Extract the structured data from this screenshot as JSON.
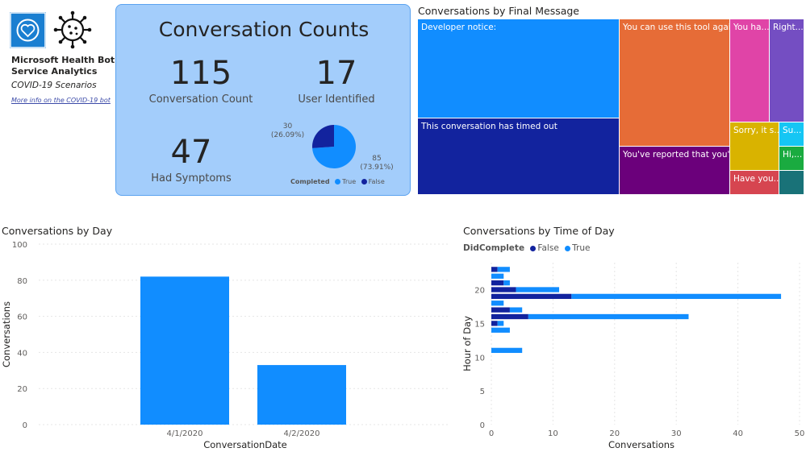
{
  "branding": {
    "title": "Microsoft Health Bot Service Analytics",
    "subtitle": "COVID-19 Scenarios",
    "link": "More info on the COVID-19 bot"
  },
  "kpis": {
    "title": "Conversation Counts",
    "conversation_count": {
      "value": "115",
      "label": "Conversation Count"
    },
    "user_identified": {
      "value": "17",
      "label": "User Identified"
    },
    "had_symptoms": {
      "value": "47",
      "label": "Had Symptoms"
    },
    "completed_pie": {
      "slices": [
        {
          "label": "True",
          "value": 85,
          "pct": "(73.91%)",
          "color": "#118DFF"
        },
        {
          "label": "False",
          "value": 30,
          "pct": "(26.09%)",
          "color": "#12239E"
        }
      ],
      "legend_title": "Completed",
      "legend_true": "True",
      "legend_false": "False",
      "true_label": "85",
      "false_label": "30"
    }
  },
  "treemap": {
    "title": "Conversations by Final Message",
    "cells": [
      {
        "label": "Developer notice:",
        "color": "#118DFF"
      },
      {
        "label": "This conversation has timed out",
        "color": "#12239E"
      },
      {
        "label": "You can use this tool agai...",
        "color": "#E66C37"
      },
      {
        "label": "You've reported that you'v...",
        "color": "#6B007B"
      },
      {
        "label": "You ha...",
        "color": "#E044A7"
      },
      {
        "label": "Right...",
        "color": "#744EC2"
      },
      {
        "label": "Sorry, it s...",
        "color": "#D9B300"
      },
      {
        "label": "Su...",
        "color": "#15C6F4"
      },
      {
        "label": "Hi,...",
        "color": "#1AAB40"
      },
      {
        "label": "Have you...",
        "color": "#D64550"
      },
      {
        "label": "",
        "color": "#197278"
      }
    ]
  },
  "chart_data": [
    {
      "type": "bar",
      "title": "Conversations by Day",
      "xlabel": "ConversationDate",
      "ylabel": "Conversations",
      "categories": [
        "4/1/2020",
        "4/2/2020"
      ],
      "values": [
        82,
        33
      ],
      "ylim": [
        0,
        100
      ],
      "yticks": [
        0,
        20,
        40,
        60,
        80,
        100
      ],
      "color": "#118DFF",
      "grid": true
    },
    {
      "type": "bar",
      "orientation": "horizontal-stacked",
      "title": "Conversations by Time of Day",
      "legend_title": "DidComplete",
      "legend_position": "top-left",
      "xlabel": "Conversations",
      "ylabel": "Hour of Day",
      "xlim": [
        0,
        50
      ],
      "xticks": [
        0,
        10,
        20,
        30,
        40,
        50
      ],
      "ylim": [
        0,
        24
      ],
      "yticks": [
        0,
        5,
        10,
        15,
        20
      ],
      "series": [
        {
          "name": "False",
          "color": "#12239E",
          "y": [
            11,
            14,
            15,
            16,
            17,
            18,
            19,
            20,
            21,
            22,
            23
          ],
          "values": [
            0,
            0,
            1,
            6,
            3,
            0,
            13,
            4,
            2,
            0,
            1
          ]
        },
        {
          "name": "True",
          "color": "#118DFF",
          "y": [
            11,
            14,
            15,
            16,
            17,
            18,
            19,
            20,
            21,
            22,
            23
          ],
          "values": [
            5,
            3,
            1,
            26,
            2,
            2,
            34,
            7,
            1,
            2,
            2
          ]
        }
      ]
    }
  ]
}
